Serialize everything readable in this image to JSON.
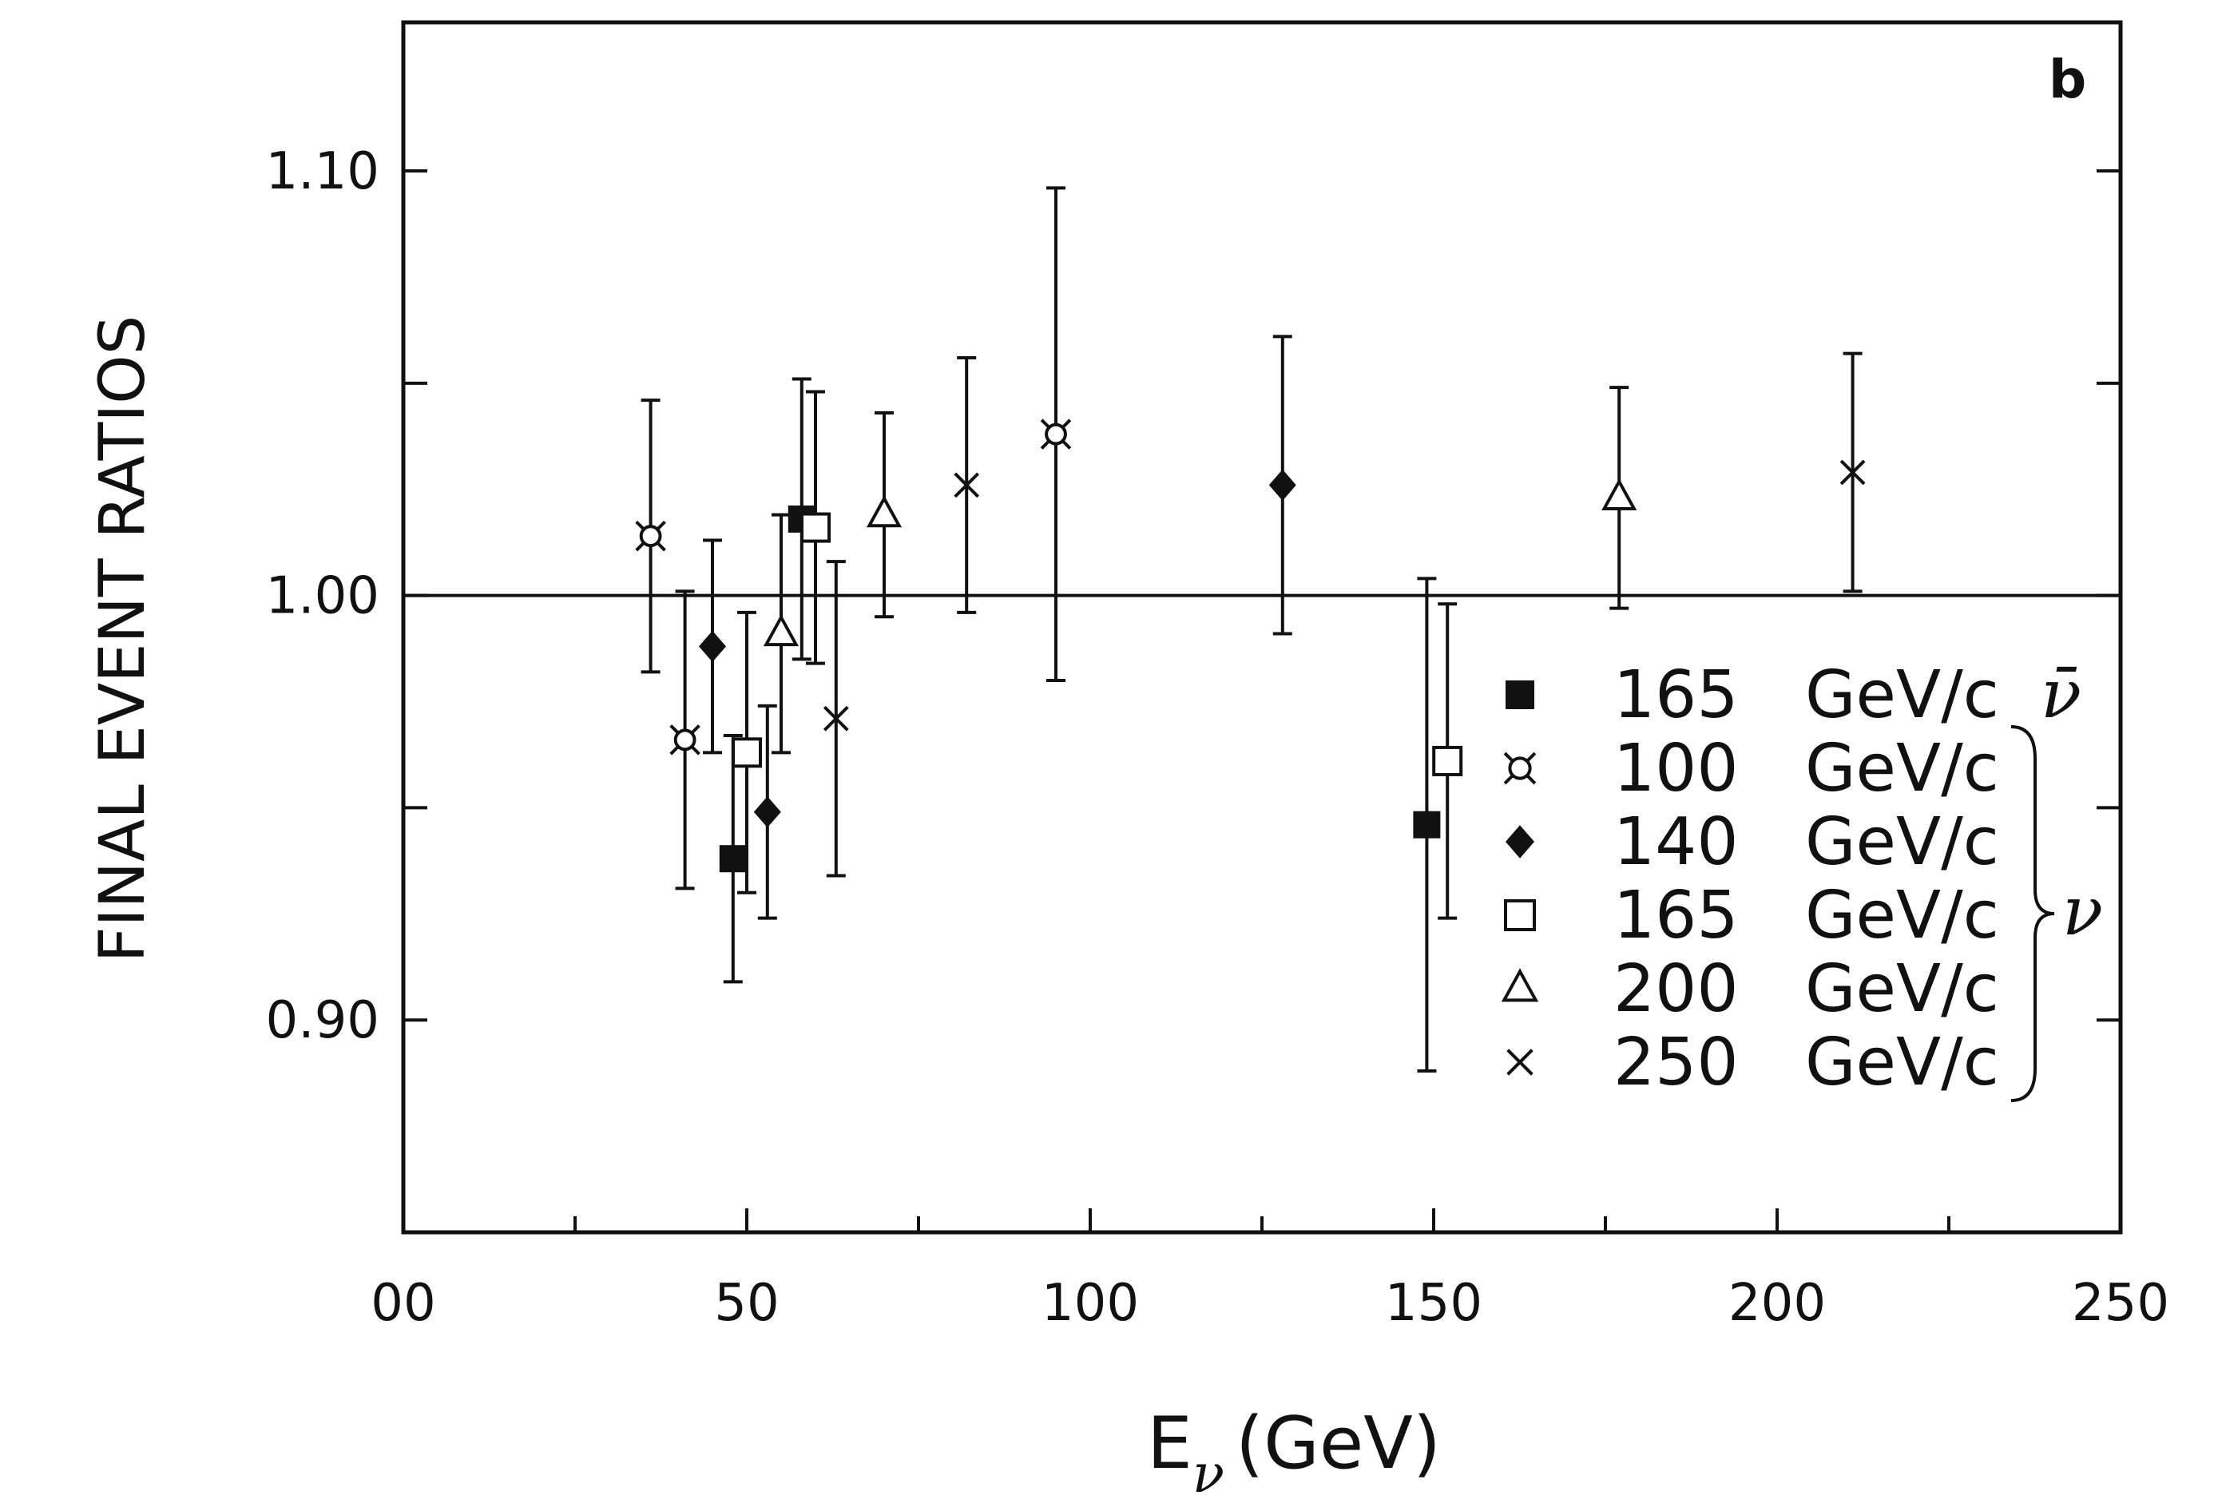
{
  "chart_data": {
    "type": "scatter",
    "panel_label": "b",
    "xlabel": {
      "main": "E",
      "sub": "ν",
      "unit": "(GeV)"
    },
    "ylabel": "FINAL EVENT RATIOS",
    "xlim": [
      0,
      250
    ],
    "ylim": [
      0.85,
      1.135
    ],
    "x_ticks": [
      0,
      50,
      100,
      150,
      200,
      250
    ],
    "x_tick_labels": [
      "00",
      "50",
      "100",
      "150",
      "200",
      "250"
    ],
    "y_ticks": [
      0.9,
      1.0,
      1.1
    ],
    "y_tick_labels": [
      "0.90",
      "1.00",
      "1.10"
    ],
    "reference_line": 1.0,
    "legend_position": "bottom-right",
    "beam_groups": [
      {
        "symbol": "ν̄",
        "series": [
          "165 GeV/c ν̄"
        ]
      },
      {
        "symbol": "ν",
        "series": [
          "100 GeV/c",
          "140 GeV/c",
          "165 GeV/c",
          "200 GeV/c",
          "250 GeV/c"
        ]
      }
    ],
    "series": [
      {
        "name": "165 GeV/c ν̄",
        "energy": "165",
        "unit": "GeV/c",
        "beam": "ν̄",
        "marker": "filled-square",
        "points": [
          {
            "x": 48,
            "y": 0.938,
            "err": 0.029
          },
          {
            "x": 58,
            "y": 1.018,
            "err": 0.033
          },
          {
            "x": 149,
            "y": 0.946,
            "err": 0.058
          }
        ]
      },
      {
        "name": "100 GeV/c",
        "energy": "100",
        "unit": "GeV/c",
        "beam": "ν",
        "marker": "starred-circle",
        "points": [
          {
            "x": 36,
            "y": 1.014,
            "err": 0.032
          },
          {
            "x": 41,
            "y": 0.966,
            "err": 0.035
          },
          {
            "x": 95,
            "y": 1.038,
            "err": 0.058
          }
        ]
      },
      {
        "name": "140 GeV/c",
        "energy": "140",
        "unit": "GeV/c",
        "beam": "ν",
        "marker": "filled-diamond",
        "points": [
          {
            "x": 45,
            "y": 0.988,
            "err": 0.025
          },
          {
            "x": 53,
            "y": 0.949,
            "err": 0.025
          },
          {
            "x": 128,
            "y": 1.026,
            "err": 0.035
          }
        ]
      },
      {
        "name": "165 GeV/c",
        "energy": "165",
        "unit": "GeV/c",
        "beam": "ν",
        "marker": "open-square",
        "points": [
          {
            "x": 50,
            "y": 0.963,
            "err": 0.033
          },
          {
            "x": 60,
            "y": 1.016,
            "err": 0.032
          },
          {
            "x": 152,
            "y": 0.961,
            "err": 0.037
          }
        ]
      },
      {
        "name": "200 GeV/c",
        "energy": "200",
        "unit": "GeV/c",
        "beam": "ν",
        "marker": "open-triangle",
        "points": [
          {
            "x": 55,
            "y": 0.991,
            "err": 0.028
          },
          {
            "x": 70,
            "y": 1.019,
            "err": 0.024
          },
          {
            "x": 177,
            "y": 1.023,
            "err": 0.026
          }
        ]
      },
      {
        "name": "250 GeV/c",
        "energy": "250",
        "unit": "GeV/c",
        "beam": "ν",
        "marker": "cross",
        "points": [
          {
            "x": 63,
            "y": 0.971,
            "err": 0.037
          },
          {
            "x": 82,
            "y": 1.026,
            "err": 0.03
          },
          {
            "x": 211,
            "y": 1.029,
            "err": 0.028
          }
        ]
      }
    ]
  }
}
